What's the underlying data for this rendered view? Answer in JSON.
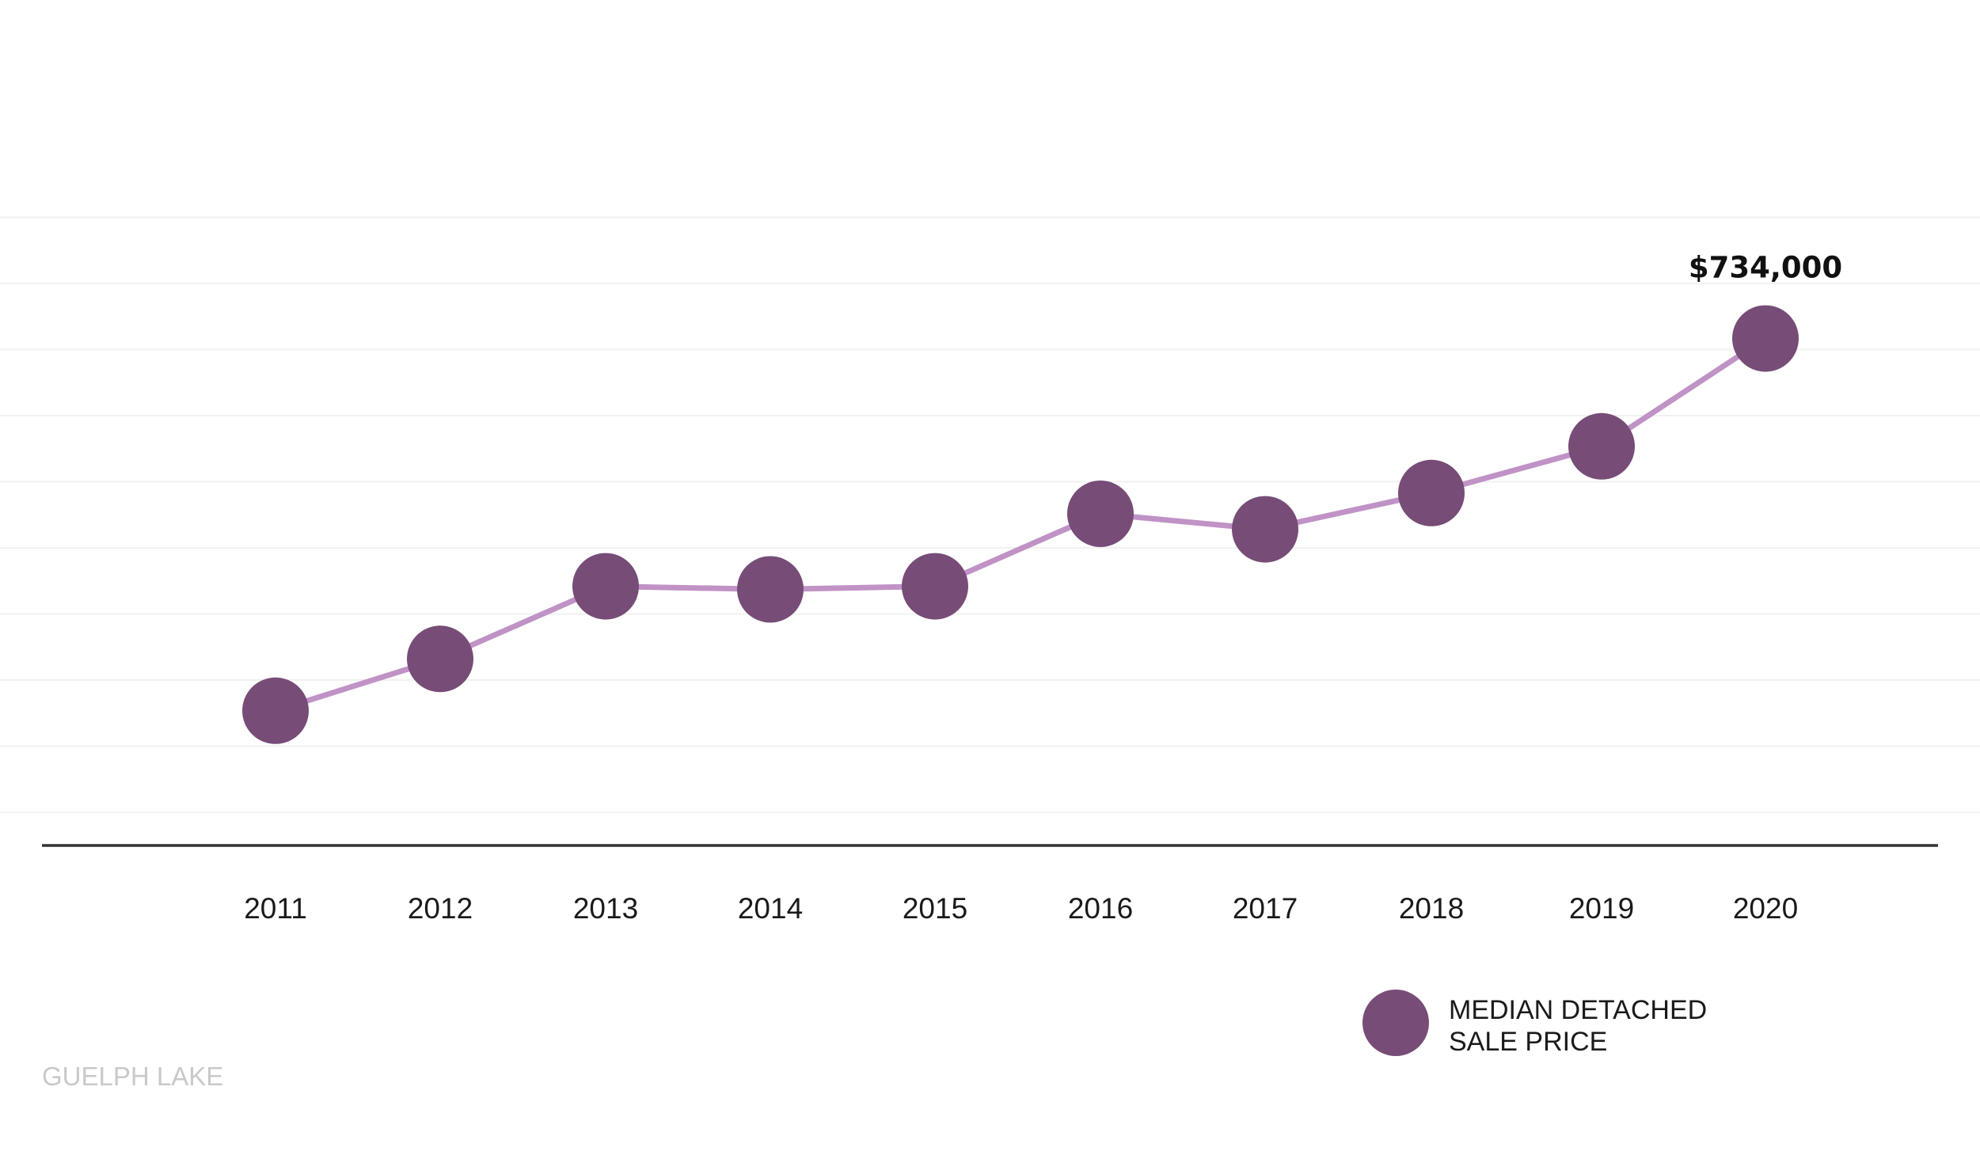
{
  "chart_data": {
    "type": "line",
    "x": [
      "2011",
      "2012",
      "2013",
      "2014",
      "2015",
      "2016",
      "2017",
      "2018",
      "2019",
      "2020"
    ],
    "series": [
      {
        "name": "MEDIAN DETACHED SALE PRICE",
        "values": [
          375000,
          425000,
          495000,
          492000,
          495000,
          565000,
          550000,
          585000,
          630000,
          734000
        ],
        "line_color": "#c092c6",
        "marker_color": "#774c77"
      }
    ],
    "data_labels": [
      {
        "x": "2020",
        "text": "$734,000"
      }
    ],
    "ylim": [
      245000,
      875000
    ],
    "grid": "horizontal",
    "legend": {
      "position": "bottom-right",
      "label_lines": [
        "MEDIAN DETACHED",
        "SALE PRICE"
      ]
    }
  },
  "watermark": "GUELPH LAKE"
}
